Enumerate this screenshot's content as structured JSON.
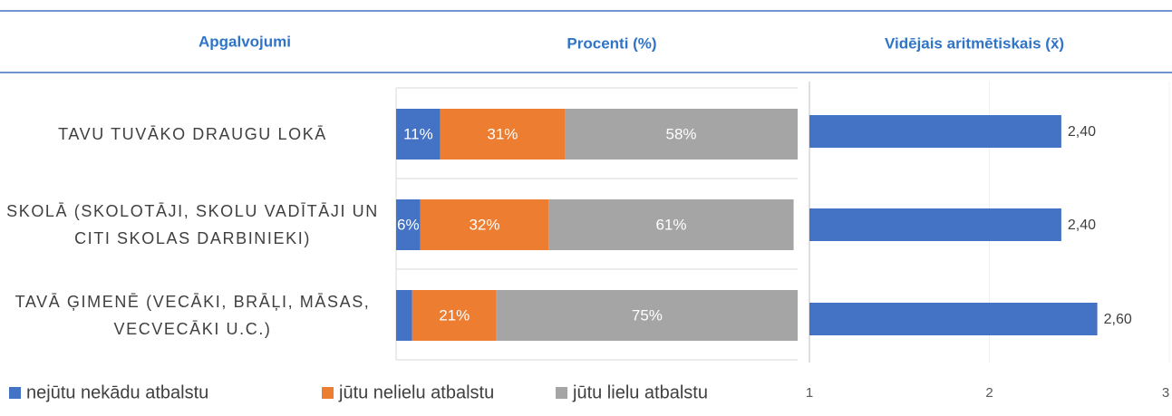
{
  "header": {
    "statements": "Apgalvojumi"
  },
  "chart_data": [
    {
      "type": "bar",
      "orientation": "horizontal",
      "stacked": true,
      "title": "Procenti (%)",
      "categories": [
        "TAVU TUVĀKO DRAUGU LOKĀ",
        "SKOLĀ (SKOLOTĀJI, SKOLU VADĪTĀJI UN CITI SKOLAS DARBINIEKI)",
        "TAVĀ ĢIMENĒ (VECĀKI, BRĀĻI, MĀSAS, VECVECĀKI U.C.)"
      ],
      "xlim": [
        0,
        100
      ],
      "grid": true,
      "legend": "bottom",
      "series": [
        {
          "name": "nejūtu nekādu atbalstu",
          "color": "#4472c4",
          "values": [
            11,
            6,
            4
          ],
          "value_labels": [
            "11%",
            "6%",
            null
          ]
        },
        {
          "name": "jūtu nelielu atbalstu",
          "color": "#ed7d31",
          "values": [
            31,
            32,
            21
          ],
          "value_labels": [
            "31%",
            "32%",
            "21%"
          ]
        },
        {
          "name": "jūtu lielu atbalstu",
          "color": "#a5a5a5",
          "values": [
            58,
            61,
            75
          ],
          "value_labels": [
            "58%",
            "61%",
            "75%"
          ]
        }
      ]
    },
    {
      "type": "bar",
      "orientation": "horizontal",
      "title": "Vidējais aritmētiskais (x̄)",
      "color": "#4472c4",
      "values": [
        2.4,
        2.4,
        2.6
      ],
      "value_labels": [
        "2,40",
        "2,40",
        "2,60"
      ],
      "xlim": [
        1,
        3
      ],
      "xticks": [
        1,
        2,
        3
      ],
      "grid": true
    }
  ]
}
